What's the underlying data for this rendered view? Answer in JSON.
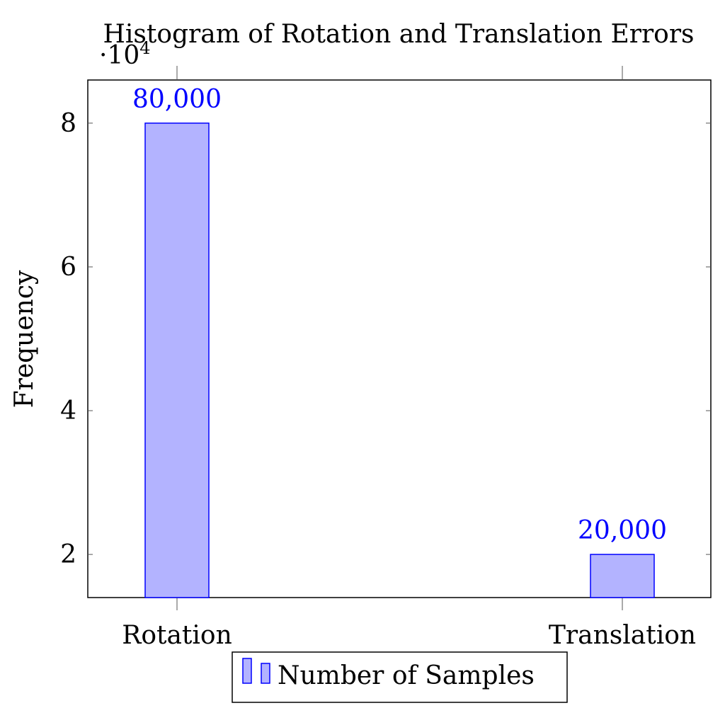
{
  "chart_data": {
    "type": "bar",
    "title": "Histogram of Rotation and Translation Errors",
    "xlabel": "",
    "ylabel": "Frequency",
    "categories": [
      "Rotation",
      "Translation"
    ],
    "series": [
      {
        "name": "Number of Samples",
        "values": [
          80000,
          20000
        ],
        "data_labels": [
          "80,000",
          "20,000"
        ]
      }
    ],
    "ylim": [
      14000,
      86000
    ],
    "yticks": [
      20000,
      40000,
      60000,
      80000
    ],
    "ytick_labels": [
      "2",
      "4",
      "6",
      "8"
    ],
    "y_scale_label": "·10",
    "y_scale_exponent": "4",
    "grid": false,
    "legend_position": "bottom-center",
    "colors": {
      "bar_fill": "#b3b3ff",
      "bar_stroke": "#0000ff",
      "data_label": "#0000ff",
      "axis": "#000000"
    }
  }
}
